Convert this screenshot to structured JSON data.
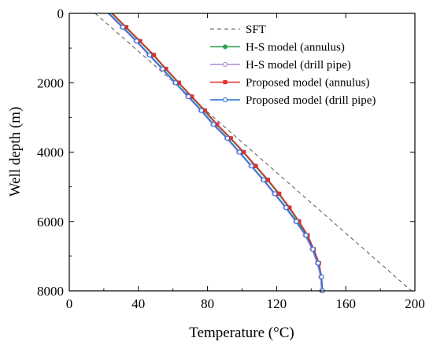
{
  "chart_data": {
    "type": "line",
    "title": "",
    "xlabel": "Temperature (°C)",
    "ylabel": "Well depth (m)",
    "xlim": [
      0,
      200
    ],
    "ylim": [
      8000,
      0
    ],
    "y_inverted": true,
    "x_ticks": [
      0,
      40,
      80,
      120,
      160,
      200
    ],
    "y_ticks": [
      0,
      2000,
      4000,
      6000,
      8000
    ],
    "x_tick_labels": [
      "0",
      "40",
      "80",
      "120",
      "160",
      "200"
    ],
    "y_tick_labels": [
      "0",
      "2000",
      "4000",
      "6000",
      "8000"
    ],
    "grid": false,
    "legend_position": "top-right",
    "series": [
      {
        "name": "SFT",
        "color": "#555555",
        "style": "dashed",
        "marker": "none",
        "points": [
          [
            15,
            0
          ],
          [
            198,
            8000
          ]
        ]
      },
      {
        "name": "H-S model (annulus)",
        "color": "#2e9e4f",
        "style": "solid",
        "marker": "filled-circle",
        "points": [
          [
            24.5,
            0
          ],
          [
            32.5,
            400
          ],
          [
            40.5,
            800
          ],
          [
            48.5,
            1200
          ],
          [
            55.5,
            1600
          ],
          [
            63,
            2000
          ],
          [
            70.5,
            2400
          ],
          [
            78,
            2800
          ],
          [
            85,
            3200
          ],
          [
            93,
            3600
          ],
          [
            100.5,
            4000
          ],
          [
            107.5,
            4400
          ],
          [
            114.5,
            4800
          ],
          [
            121,
            5200
          ],
          [
            127,
            5600
          ],
          [
            132.5,
            6000
          ],
          [
            137.5,
            6400
          ],
          [
            141,
            6800
          ],
          [
            144,
            7200
          ],
          [
            145.5,
            7600
          ],
          [
            146,
            8000
          ]
        ]
      },
      {
        "name": "H-S model (drill pipe)",
        "color": "#a98ad6",
        "style": "solid",
        "marker": "open-circle",
        "points": [
          [
            22.5,
            0
          ],
          [
            30.5,
            400
          ],
          [
            38.5,
            800
          ],
          [
            46,
            1200
          ],
          [
            53.5,
            1600
          ],
          [
            61,
            2000
          ],
          [
            68.5,
            2400
          ],
          [
            76,
            2800
          ],
          [
            83,
            3200
          ],
          [
            91,
            3600
          ],
          [
            98,
            4000
          ],
          [
            105,
            4400
          ],
          [
            112,
            4800
          ],
          [
            118.5,
            5200
          ],
          [
            125,
            5600
          ],
          [
            131,
            6000
          ],
          [
            136.5,
            6400
          ],
          [
            140.5,
            6800
          ],
          [
            143.5,
            7200
          ],
          [
            145.5,
            7600
          ],
          [
            146,
            8000
          ]
        ]
      },
      {
        "name": "Proposed model (annulus)",
        "color": "#e03030",
        "style": "solid",
        "marker": "filled-square",
        "points": [
          [
            25,
            0
          ],
          [
            33,
            400
          ],
          [
            41,
            800
          ],
          [
            49,
            1200
          ],
          [
            56,
            1600
          ],
          [
            63.5,
            2000
          ],
          [
            71,
            2400
          ],
          [
            78.5,
            2800
          ],
          [
            85.5,
            3200
          ],
          [
            93.5,
            3600
          ],
          [
            101,
            4000
          ],
          [
            108,
            4400
          ],
          [
            115,
            4800
          ],
          [
            121.5,
            5200
          ],
          [
            127.5,
            5600
          ],
          [
            133,
            6000
          ],
          [
            138,
            6400
          ],
          [
            141.5,
            6800
          ],
          [
            144.5,
            7200
          ],
          [
            146,
            7600
          ],
          [
            146.5,
            8000
          ]
        ]
      },
      {
        "name": "Proposed model (drill pipe)",
        "color": "#2a6fd6",
        "style": "solid",
        "marker": "open-circle",
        "points": [
          [
            23,
            0
          ],
          [
            31,
            400
          ],
          [
            39,
            800
          ],
          [
            46.5,
            1200
          ],
          [
            54,
            1600
          ],
          [
            61.5,
            2000
          ],
          [
            69,
            2400
          ],
          [
            76.5,
            2800
          ],
          [
            83.5,
            3200
          ],
          [
            91.5,
            3600
          ],
          [
            98.5,
            4000
          ],
          [
            105.5,
            4400
          ],
          [
            112.5,
            4800
          ],
          [
            119,
            5200
          ],
          [
            125.5,
            5600
          ],
          [
            131.5,
            6000
          ],
          [
            137,
            6400
          ],
          [
            141,
            6800
          ],
          [
            144,
            7200
          ],
          [
            146,
            7600
          ],
          [
            146.5,
            8000
          ]
        ]
      }
    ]
  }
}
